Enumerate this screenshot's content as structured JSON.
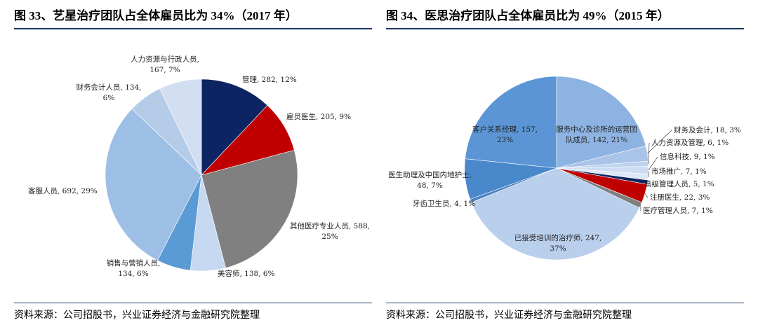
{
  "chart_data": [
    {
      "type": "pie",
      "title": "图 33、艺星治疗团队占全体雇员比为 34%（2017 年）",
      "categories": [
        "管理, 282, 12%",
        "雇员医生, 205, 9%",
        "其他医疗专业人员, 588, 25%",
        "美容师, 138, 6%",
        "销售与营销人员, 134, 6%",
        "客服人员, 692, 29%",
        "财务会计人员, 134, 6%",
        "人力资源与行政人员, 167, 7%"
      ],
      "values": [
        282,
        205,
        588,
        138,
        134,
        692,
        134,
        167
      ],
      "colors": [
        "#0c2461",
        "#c00000",
        "#808080",
        "#c6d9f0",
        "#5b9bd5",
        "#9dbfe6",
        "#b5cce9",
        "#d2def1"
      ],
      "source": "资料来源：公司招股书，兴业证券经济与金融研究院整理"
    },
    {
      "type": "pie",
      "title": "图 34、医思治疗团队占全体雇员比为 49%（2015 年）",
      "categories": [
        "服务中心及诊所的运营团队成员, 142, 21%",
        "财务及会计, 18, 3%",
        "人力资源及管理, 6, 1%",
        "信息科技, 9, 1%",
        "市场推广, 7, 1%",
        "高级管理人员, 5, 1%",
        "注册医生, 22, 3%",
        "医疗管理人员, 7, 1%",
        "已接受培训的治疗师, 247, 37%",
        "牙齿卫生员, 4, 1%",
        "医生助理及中国内地护士, 48, 7%",
        "客户关系经理, 157, 23%"
      ],
      "values": [
        142,
        18,
        6,
        9,
        7,
        5,
        22,
        7,
        247,
        4,
        48,
        157
      ],
      "colors": [
        "#8db3e2",
        "#a9c4e8",
        "#bcd2ee",
        "#cddcf2",
        "#dde8f6",
        "#0c2461",
        "#c00000",
        "#808080",
        "#b9cfec",
        "#4a7fc0",
        "#4a88cc",
        "#5b95d5"
      ],
      "source": "资料来源：公司招股书，兴业证券经济与金融研究院整理"
    }
  ]
}
